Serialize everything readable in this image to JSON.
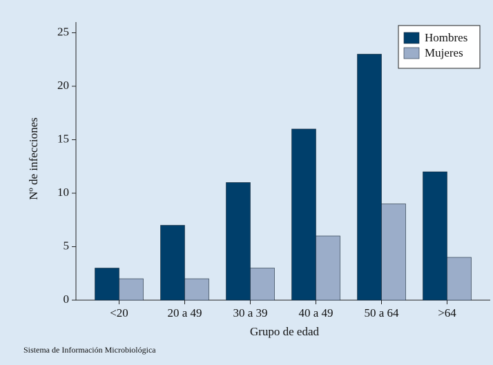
{
  "chart_data": {
    "type": "bar",
    "x_label": "Grupo de edad",
    "y_label": "Nº de infecciones",
    "source": "Sistema de Información Microbiológica",
    "categories": [
      "<20",
      "20 a 49",
      "30 a 39",
      "40 a 49",
      "50 a 64",
      ">64"
    ],
    "series": [
      {
        "name": "Hombres",
        "color": "#003f6b",
        "values": [
          3,
          7,
          11,
          16,
          23,
          12
        ]
      },
      {
        "name": "Mujeres",
        "color": "#9badc9",
        "values": [
          2,
          2,
          3,
          6,
          9,
          4
        ]
      }
    ],
    "ylim": [
      0,
      26
    ],
    "yticks": [
      0,
      5,
      10,
      15,
      20,
      25
    ],
    "grid": false,
    "legend": "top-right"
  }
}
